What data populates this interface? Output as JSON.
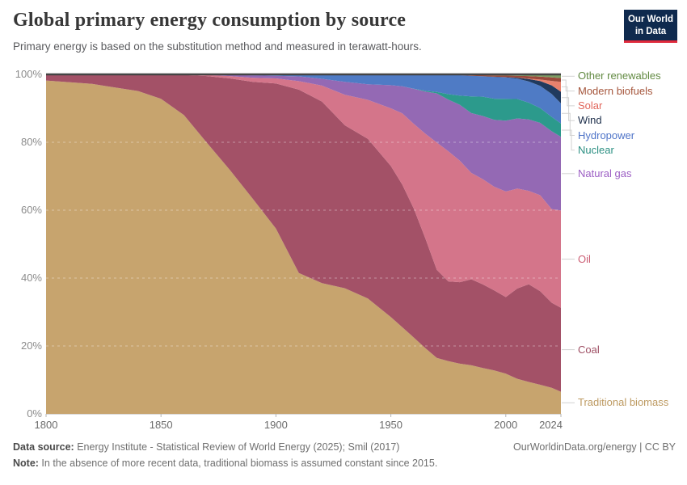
{
  "header": {
    "title": "Global primary energy consumption by source",
    "subtitle": "Primary energy is based on the substitution method and measured in terawatt-hours."
  },
  "logo": {
    "line1": "Our World",
    "line2": "in Data",
    "bg_color": "#0f2a4e",
    "accent_color": "#e02a3c"
  },
  "footer": {
    "source_label": "Data source:",
    "source_text": " Energy Institute - Statistical Review of World Energy (2025); Smil (2017)",
    "note_label": "Note:",
    "note_text": " In the absence of more recent data, traditional biomass is assumed constant since 2015.",
    "credit": "OurWorldinData.org/energy | CC BY"
  },
  "chart_data": {
    "type": "area",
    "stacking": "percent",
    "title": "Global primary energy consumption by source",
    "xlabel": "",
    "ylabel": "",
    "xlim": [
      1800,
      2024
    ],
    "ylim": [
      0,
      100
    ],
    "grid": "dashed-overlay",
    "legend_position": "right",
    "x_ticks": [
      1800,
      1850,
      1900,
      1950,
      2000,
      2024
    ],
    "y_ticks": [
      "0%",
      "20%",
      "40%",
      "60%",
      "80%",
      "100%"
    ],
    "x": [
      1800,
      1820,
      1840,
      1850,
      1860,
      1870,
      1880,
      1890,
      1900,
      1910,
      1920,
      1930,
      1940,
      1950,
      1955,
      1960,
      1965,
      1970,
      1975,
      1980,
      1985,
      1990,
      1995,
      2000,
      2005,
      2010,
      2015,
      2020,
      2024
    ],
    "series": [
      {
        "id": "traditional-biomass",
        "name": "Traditional biomass",
        "color": "#c7a46e",
        "label_color": "#bd9a61",
        "values": [
          98.2,
          97.2,
          95.1,
          92.8,
          88.0,
          79.8,
          71.8,
          63.3,
          54.6,
          41.5,
          38.5,
          37.0,
          34.0,
          28.5,
          25.5,
          22.5,
          19.5,
          16.5,
          15.5,
          14.8,
          14.3,
          13.5,
          12.8,
          11.8,
          10.3,
          9.3,
          8.5,
          7.6,
          6.5
        ]
      },
      {
        "id": "coal",
        "name": "Coal",
        "color": "#a35167",
        "label_color": "#9e4e63",
        "values": [
          1.8,
          2.8,
          4.9,
          7.2,
          11.8,
          19.7,
          27.0,
          34.5,
          42.7,
          54.0,
          53.5,
          48.0,
          47.0,
          44.5,
          42.0,
          38.0,
          32.5,
          26.0,
          23.5,
          24.0,
          25.3,
          24.7,
          23.5,
          22.5,
          26.5,
          28.5,
          27.3,
          24.8,
          24.6
        ]
      },
      {
        "id": "oil",
        "name": "Oil",
        "color": "#d4758a",
        "label_color": "#cc5f75",
        "values": [
          0,
          0,
          0,
          0,
          0.1,
          0.3,
          0.7,
          1.2,
          1.5,
          2.5,
          4.7,
          9.0,
          11.5,
          17.0,
          21.0,
          25.0,
          31.0,
          37.5,
          38.3,
          35.8,
          31.3,
          31.0,
          30.5,
          31.0,
          29.3,
          27.2,
          28.0,
          27.3,
          28.5
        ]
      },
      {
        "id": "natural-gas",
        "name": "Natural gas",
        "color": "#9469b4",
        "label_color": "#9c5ec4",
        "values": [
          0,
          0,
          0,
          0,
          0,
          0.1,
          0.4,
          0.7,
          0.8,
          1.4,
          2.0,
          3.8,
          4.6,
          6.8,
          8.0,
          10.3,
          12.5,
          14.5,
          15.2,
          16.5,
          17.6,
          18.6,
          19.7,
          20.8,
          20.6,
          20.8,
          21.1,
          22.7,
          21.6
        ]
      },
      {
        "id": "nuclear",
        "name": "Nuclear",
        "color": "#2c9a8c",
        "label_color": "#2b8f82",
        "values": [
          0,
          0,
          0,
          0,
          0,
          0,
          0,
          0,
          0,
          0,
          0,
          0,
          0,
          0,
          0,
          0.02,
          0.2,
          0.4,
          1.6,
          2.7,
          4.9,
          5.7,
          6.2,
          6.4,
          5.7,
          4.9,
          4.3,
          4.2,
          3.9
        ]
      },
      {
        "id": "hydropower",
        "name": "Hydropower",
        "color": "#4f7bc5",
        "label_color": "#4f74c8",
        "values": [
          0,
          0,
          0,
          0,
          0.1,
          0.1,
          0.1,
          0.3,
          0.4,
          0.6,
          1.3,
          2.2,
          2.9,
          3.2,
          3.5,
          4.2,
          4.8,
          5.1,
          5.7,
          6.0,
          6.1,
          6.0,
          6.4,
          6.3,
          6.0,
          6.2,
          6.5,
          6.7,
          5.9
        ]
      },
      {
        "id": "wind",
        "name": "Wind",
        "color": "#203a5e",
        "label_color": "#1c2e4a",
        "values": [
          0,
          0,
          0,
          0,
          0,
          0,
          0,
          0,
          0,
          0,
          0,
          0,
          0,
          0,
          0,
          0,
          0,
          0,
          0,
          0,
          0,
          0.02,
          0.05,
          0.1,
          0.25,
          0.7,
          1.4,
          2.5,
          3.4
        ]
      },
      {
        "id": "solar",
        "name": "Solar",
        "color": "#e8816d",
        "label_color": "#e1655a",
        "values": [
          0,
          0,
          0,
          0,
          0,
          0,
          0,
          0,
          0,
          0,
          0,
          0,
          0,
          0,
          0,
          0,
          0,
          0,
          0,
          0,
          0,
          0,
          0,
          0.01,
          0.03,
          0.1,
          0.45,
          1.3,
          2.9
        ]
      },
      {
        "id": "modern-biofuels",
        "name": "Modern biofuels",
        "color": "#9a493b",
        "label_color": "#a5553b",
        "values": [
          0,
          0,
          0,
          0,
          0,
          0,
          0,
          0,
          0,
          0,
          0,
          0,
          0,
          0,
          0,
          0,
          0,
          0,
          0,
          0.1,
          0.2,
          0.3,
          0.4,
          0.45,
          0.55,
          0.75,
          0.85,
          1.0,
          1.1
        ]
      },
      {
        "id": "other-renewables",
        "name": "Other renewables",
        "color": "#7d9d63",
        "label_color": "#628a42",
        "values": [
          0,
          0,
          0,
          0,
          0,
          0,
          0,
          0,
          0,
          0,
          0,
          0,
          0,
          0,
          0,
          0.05,
          0.07,
          0.1,
          0.12,
          0.15,
          0.2,
          0.25,
          0.3,
          0.35,
          0.4,
          0.5,
          0.65,
          0.9,
          1.1
        ]
      }
    ]
  }
}
